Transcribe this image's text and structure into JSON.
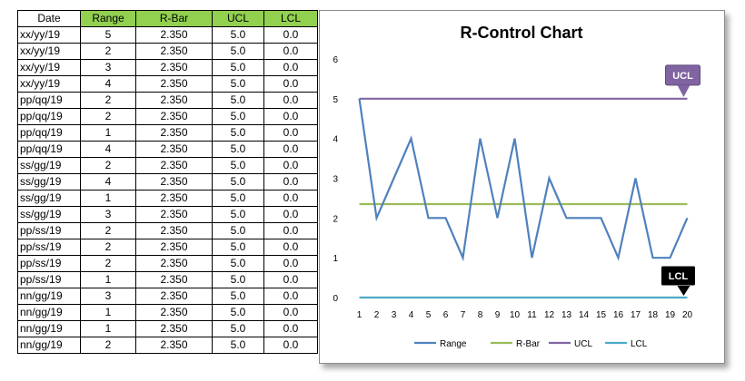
{
  "table": {
    "headers": [
      "Date",
      "Range",
      "R-Bar",
      "UCL",
      "LCL"
    ],
    "rows": [
      [
        "xx/yy/19",
        "5",
        "2.350",
        "5.0",
        "0.0"
      ],
      [
        "xx/yy/19",
        "2",
        "2.350",
        "5.0",
        "0.0"
      ],
      [
        "xx/yy/19",
        "3",
        "2.350",
        "5.0",
        "0.0"
      ],
      [
        "xx/yy/19",
        "4",
        "2.350",
        "5.0",
        "0.0"
      ],
      [
        "pp/qq/19",
        "2",
        "2.350",
        "5.0",
        "0.0"
      ],
      [
        "pp/qq/19",
        "2",
        "2.350",
        "5.0",
        "0.0"
      ],
      [
        "pp/qq/19",
        "1",
        "2.350",
        "5.0",
        "0.0"
      ],
      [
        "pp/qq/19",
        "4",
        "2.350",
        "5.0",
        "0.0"
      ],
      [
        "ss/gg/19",
        "2",
        "2.350",
        "5.0",
        "0.0"
      ],
      [
        "ss/gg/19",
        "4",
        "2.350",
        "5.0",
        "0.0"
      ],
      [
        "ss/gg/19",
        "1",
        "2.350",
        "5.0",
        "0.0"
      ],
      [
        "ss/gg/19",
        "3",
        "2.350",
        "5.0",
        "0.0"
      ],
      [
        "pp/ss/19",
        "2",
        "2.350",
        "5.0",
        "0.0"
      ],
      [
        "pp/ss/19",
        "2",
        "2.350",
        "5.0",
        "0.0"
      ],
      [
        "pp/ss/19",
        "2",
        "2.350",
        "5.0",
        "0.0"
      ],
      [
        "pp/ss/19",
        "1",
        "2.350",
        "5.0",
        "0.0"
      ],
      [
        "nn/gg/19",
        "3",
        "2.350",
        "5.0",
        "0.0"
      ],
      [
        "nn/gg/19",
        "1",
        "2.350",
        "5.0",
        "0.0"
      ],
      [
        "nn/gg/19",
        "1",
        "2.350",
        "5.0",
        "0.0"
      ],
      [
        "nn/gg/19",
        "2",
        "2.350",
        "5.0",
        "0.0"
      ]
    ]
  },
  "chart_data": {
    "type": "line",
    "title": "R-Control Chart",
    "x": [
      1,
      2,
      3,
      4,
      5,
      6,
      7,
      8,
      9,
      10,
      11,
      12,
      13,
      14,
      15,
      16,
      17,
      18,
      19,
      20
    ],
    "ylim": [
      0,
      6
    ],
    "yticks": [
      0,
      1,
      2,
      3,
      4,
      5,
      6
    ],
    "grid": false,
    "legend_position": "bottom",
    "series": [
      {
        "name": "Range",
        "color": "#4f81bd",
        "values": [
          5,
          2,
          3,
          4,
          2,
          2,
          1,
          4,
          2,
          4,
          1,
          3,
          2,
          2,
          2,
          1,
          3,
          1,
          1,
          2
        ]
      },
      {
        "name": "R-Bar",
        "color": "#9bbb59",
        "values": [
          2.35,
          2.35,
          2.35,
          2.35,
          2.35,
          2.35,
          2.35,
          2.35,
          2.35,
          2.35,
          2.35,
          2.35,
          2.35,
          2.35,
          2.35,
          2.35,
          2.35,
          2.35,
          2.35,
          2.35
        ]
      },
      {
        "name": "UCL",
        "color": "#8064a2",
        "values": [
          5,
          5,
          5,
          5,
          5,
          5,
          5,
          5,
          5,
          5,
          5,
          5,
          5,
          5,
          5,
          5,
          5,
          5,
          5,
          5
        ]
      },
      {
        "name": "LCL",
        "color": "#4bacc6",
        "values": [
          0,
          0,
          0,
          0,
          0,
          0,
          0,
          0,
          0,
          0,
          0,
          0,
          0,
          0,
          0,
          0,
          0,
          0,
          0,
          0
        ]
      }
    ],
    "annotations": [
      {
        "text": "UCL",
        "series": "UCL",
        "color": "#8064a2"
      },
      {
        "text": "LCL",
        "series": "LCL",
        "color": "#000000"
      }
    ]
  }
}
